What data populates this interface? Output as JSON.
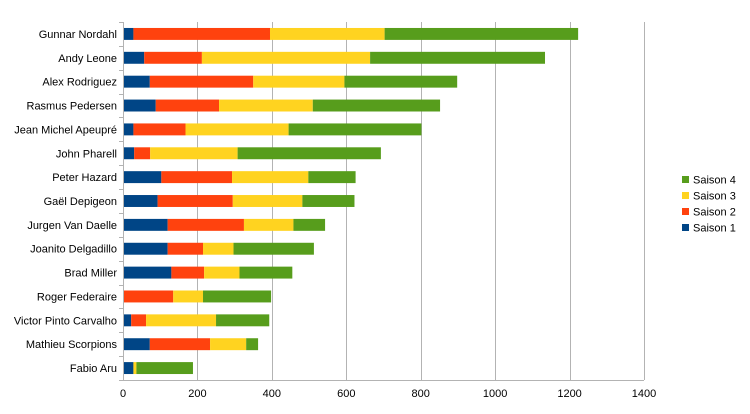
{
  "chart_data": {
    "type": "bar",
    "orientation": "horizontal",
    "stacked": true,
    "title": "",
    "xlabel": "",
    "ylabel": "",
    "xlim": [
      0,
      1400
    ],
    "x_ticks": [
      0,
      200,
      400,
      600,
      800,
      1000,
      1200,
      1400
    ],
    "grid": "vertical",
    "legend_position": "right",
    "categories": [
      "Gunnar Nordahl",
      "Andy Leone",
      "Alex Rodriguez",
      "Rasmus Pedersen",
      "Jean Michel Apeupré",
      "John Pharell",
      "Peter Hazard",
      "Gaël Depigeon",
      "Jurgen Van Daelle",
      "Joanito Delgadillo",
      "Brad Miller",
      "Roger Federaire",
      "Victor Pinto Carvalho",
      "Mathieu Scorpions",
      "Fabio Aru"
    ],
    "series": [
      {
        "name": "Saison 1",
        "color": "#004586",
        "values": [
          28,
          57,
          72,
          88,
          28,
          30,
          103,
          93,
          120,
          120,
          130,
          2,
          22,
          72,
          28
        ]
      },
      {
        "name": "Saison 2",
        "color": "#ff420e",
        "values": [
          367,
          155,
          278,
          170,
          140,
          43,
          190,
          202,
          205,
          95,
          88,
          133,
          40,
          162,
          0
        ]
      },
      {
        "name": "Saison 3",
        "color": "#ffd320",
        "values": [
          308,
          452,
          245,
          252,
          277,
          235,
          205,
          187,
          133,
          82,
          95,
          80,
          188,
          97,
          8
        ]
      },
      {
        "name": "Saison 4",
        "color": "#579d1c",
        "values": [
          520,
          470,
          303,
          342,
          357,
          385,
          127,
          140,
          85,
          216,
          142,
          183,
          143,
          32,
          152
        ]
      }
    ]
  }
}
